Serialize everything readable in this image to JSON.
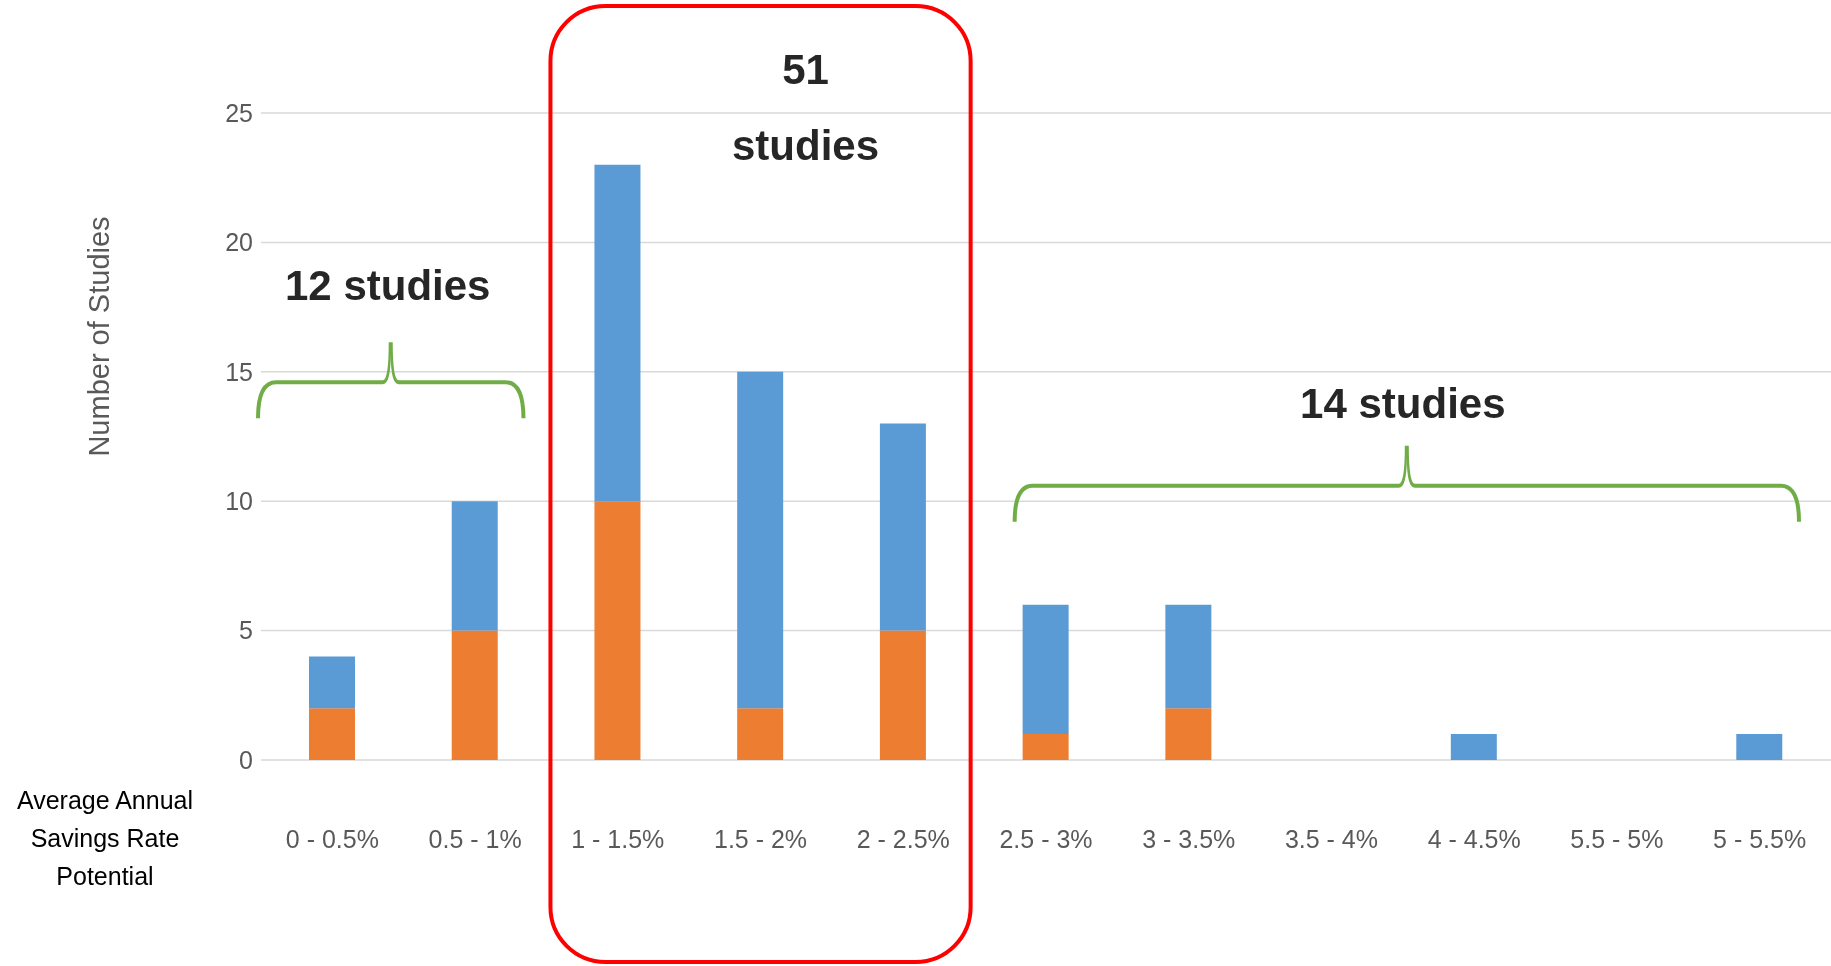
{
  "chart_data": {
    "type": "bar",
    "stacked": true,
    "xlabel": "Average Annual Savings Rate Potential",
    "ylabel": "Number of Studies",
    "categories": [
      "0 - 0.5%",
      "0.5 - 1%",
      "1 - 1.5%",
      "1.5 - 2%",
      "2 - 2.5%",
      "2.5 - 3%",
      "3 - 3.5%",
      "3.5 - 4%",
      "4 - 4.5%",
      "5.5 - 5%",
      "5 - 5.5%"
    ],
    "series": [
      {
        "color": "#ed7d31",
        "values": [
          2,
          5,
          10,
          2,
          5,
          1,
          2,
          0,
          0,
          0,
          0
        ]
      },
      {
        "color": "#5b9bd5",
        "values": [
          2,
          5,
          13,
          13,
          8,
          5,
          4,
          0,
          1,
          0,
          1
        ]
      }
    ],
    "ylim": [
      0,
      25
    ],
    "yticks": [
      0,
      5,
      10,
      15,
      20,
      25
    ],
    "grid": "y",
    "annotations": [
      "12 studies",
      "51 studies",
      "14 studies"
    ]
  }
}
